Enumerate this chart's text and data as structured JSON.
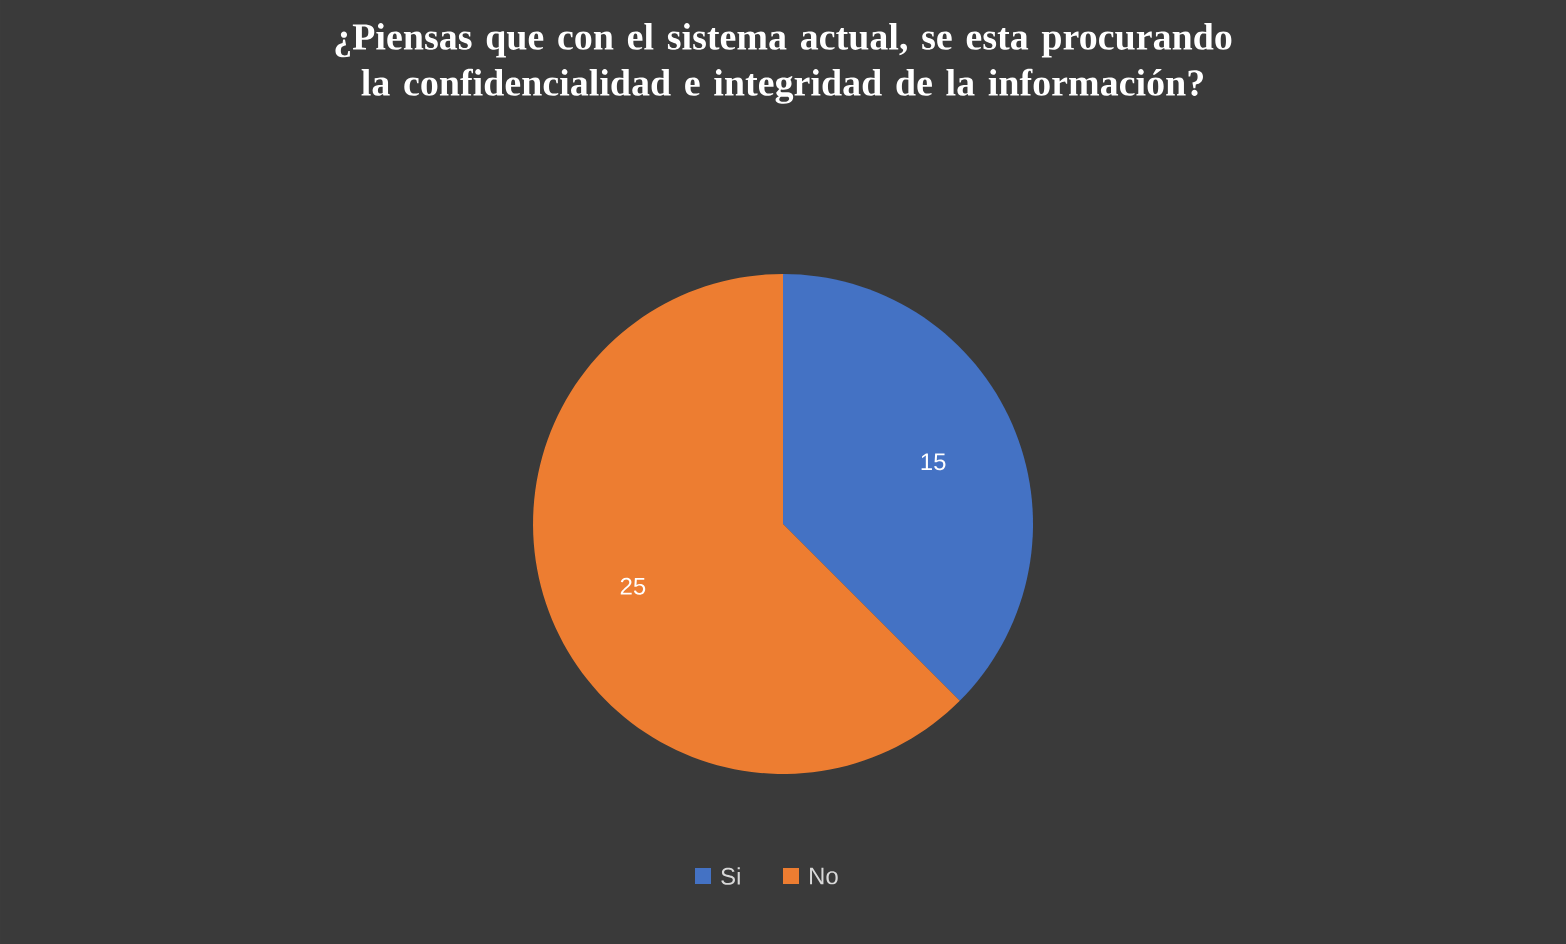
{
  "chart_data": {
    "type": "pie",
    "title": "¿Piensas que con el sistema actual, se esta procurando la confidencialidad e integridad de la información?",
    "categories": [
      "Si",
      "No"
    ],
    "values": [
      15,
      25
    ],
    "colors": [
      "#4472c4",
      "#ed7d31"
    ],
    "data_labels": true,
    "legend": "bottom"
  }
}
